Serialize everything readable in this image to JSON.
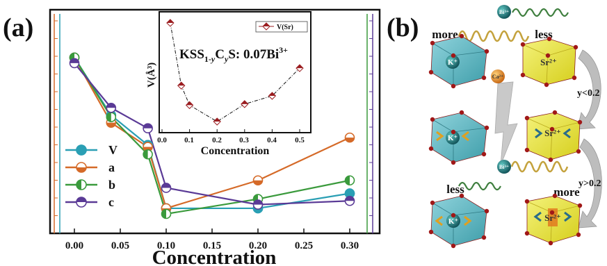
{
  "panel_a": {
    "label": "(a)",
    "xlabel": "Concentration",
    "x_ticks": [
      "0.00",
      "0.05",
      "0.10",
      "0.15",
      "0.20",
      "0.25",
      "0.30"
    ]
  },
  "inset": {
    "formula": {
      "prefix": "KSS",
      "sub1": "1-",
      "sub_y1": "y",
      "mid": "C",
      "sub_y2": "y",
      "suffix": "S: 0.07Bi",
      "sup": "3+"
    },
    "ylabel": "V(Å³)",
    "xlabel": "Concentration",
    "legend": "V(Sr)",
    "x_ticks": [
      "0.0",
      "0.1",
      "0.2",
      "0.3",
      "0.4",
      "0.5"
    ]
  },
  "panel_b": {
    "label": "(b)",
    "top": {
      "ion": "Bi³⁺",
      "left_word": "more",
      "right_word": "less"
    },
    "bottom": {
      "ion": "Bi³⁺",
      "left_word": "less",
      "right_word": "more"
    },
    "k_label": "K⁺",
    "sr_label": "Sr²⁺",
    "ca_label": "Ca²⁺",
    "cond1": "y<0.2",
    "cond2": "y>0.2"
  },
  "chart_data": [
    {
      "type": "line",
      "x": [
        0.0,
        0.04,
        0.08,
        0.1,
        0.2,
        0.3
      ],
      "xlim": [
        -0.02,
        0.32
      ],
      "ylim": [
        0,
        1
      ],
      "xlabel": "Concentration",
      "series": [
        {
          "name": "V",
          "color": "#2a9fb4",
          "marker": "full",
          "values": [
            0.84,
            0.53,
            0.37,
            0.03,
            0.03,
            0.11
          ]
        },
        {
          "name": "a",
          "color": "#d56a28",
          "marker": "bottom",
          "values": [
            0.84,
            0.49,
            0.36,
            0.03,
            0.18,
            0.41
          ]
        },
        {
          "name": "b",
          "color": "#3a9a3c",
          "marker": "left",
          "values": [
            0.84,
            0.52,
            0.32,
            0.0,
            0.08,
            0.18
          ]
        },
        {
          "name": "c",
          "color": "#5a3a96",
          "marker": "top",
          "values": [
            0.81,
            0.57,
            0.46,
            0.14,
            0.05,
            0.07
          ]
        }
      ],
      "grid": false,
      "legend_position": "bottom-left"
    },
    {
      "type": "line",
      "x": [
        0.03,
        0.07,
        0.1,
        0.2,
        0.3,
        0.4,
        0.5
      ],
      "xlim": [
        0.0,
        0.53
      ],
      "ylim": [
        0,
        1
      ],
      "xlabel": "Concentration",
      "ylabel": "V(Å³)",
      "series": [
        {
          "name": "V(Sr)",
          "color": "#9b1d20",
          "marker": "diamond",
          "values": [
            0.98,
            0.37,
            0.18,
            0.02,
            0.19,
            0.27,
            0.54
          ]
        }
      ],
      "legend_position": "top-right"
    }
  ]
}
